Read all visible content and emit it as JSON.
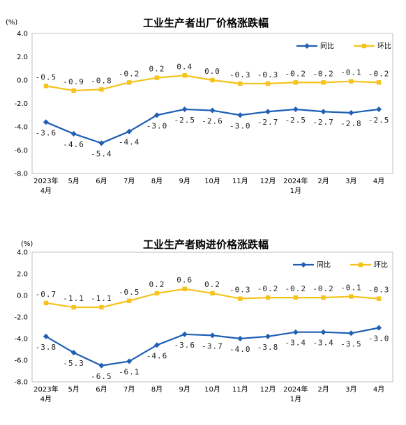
{
  "chart_data": [
    {
      "type": "line",
      "title": "工业生产者出厂价格涨跌幅",
      "unit": "(%)",
      "ylim": [
        -8.0,
        4.0
      ],
      "yticks": [
        "4.0",
        "2.0",
        "0.0",
        "-2.0",
        "-4.0",
        "-6.0",
        "-8.0"
      ],
      "categories": [
        {
          "line1": "2023年",
          "line2": "4月"
        },
        {
          "line1": "5月",
          "line2": ""
        },
        {
          "line1": "6月",
          "line2": ""
        },
        {
          "line1": "7月",
          "line2": ""
        },
        {
          "line1": "8月",
          "line2": ""
        },
        {
          "line1": "9月",
          "line2": ""
        },
        {
          "line1": "10月",
          "line2": ""
        },
        {
          "line1": "11月",
          "line2": ""
        },
        {
          "line1": "12月",
          "line2": ""
        },
        {
          "line1": "2024年",
          "line2": "1月"
        },
        {
          "line1": "2月",
          "line2": ""
        },
        {
          "line1": "3月",
          "line2": ""
        },
        {
          "line1": "4月",
          "line2": ""
        }
      ],
      "legend_position": "top-right",
      "grid": false,
      "series": [
        {
          "name": "同比",
          "color": "#1f5fb4",
          "marker": "diamond",
          "values": [
            -3.6,
            -4.6,
            -5.4,
            -4.4,
            -3.0,
            -2.5,
            -2.6,
            -3.0,
            -2.7,
            -2.5,
            -2.7,
            -2.8,
            -2.5
          ],
          "labels": [
            "-3.6",
            "-4.6",
            "-5.4",
            "-4.4",
            "-3.0",
            "-2.5",
            "-2.6",
            "-3.0",
            "-2.7",
            "-2.5",
            "-2.7",
            "-2.8",
            "-2.5"
          ]
        },
        {
          "name": "环比",
          "color": "#f5c31c",
          "marker": "square",
          "values": [
            -0.5,
            -0.9,
            -0.8,
            -0.2,
            0.2,
            0.4,
            0.0,
            -0.3,
            -0.3,
            -0.2,
            -0.2,
            -0.1,
            -0.2
          ],
          "labels": [
            "-0.5",
            "-0.9",
            "-0.8",
            "-0.2",
            "0.2",
            "0.4",
            "0.0",
            "-0.3",
            "-0.3",
            "-0.2",
            "-0.2",
            "-0.1",
            "-0.2"
          ]
        }
      ]
    },
    {
      "type": "line",
      "title": "工业生产者购进价格涨跌幅",
      "unit": "(%)",
      "ylim": [
        -8.0,
        4.0
      ],
      "yticks": [
        "4.0",
        "2.0",
        "0.0",
        "-2.0",
        "-4.0",
        "-6.0",
        "-8.0"
      ],
      "categories": [
        {
          "line1": "2023年",
          "line2": "4月"
        },
        {
          "line1": "5月",
          "line2": ""
        },
        {
          "line1": "6月",
          "line2": ""
        },
        {
          "line1": "7月",
          "line2": ""
        },
        {
          "line1": "8月",
          "line2": ""
        },
        {
          "line1": "9月",
          "line2": ""
        },
        {
          "line1": "10月",
          "line2": ""
        },
        {
          "line1": "11月",
          "line2": ""
        },
        {
          "line1": "12月",
          "line2": ""
        },
        {
          "line1": "2024年",
          "line2": "1月"
        },
        {
          "line1": "2月",
          "line2": ""
        },
        {
          "line1": "3月",
          "line2": ""
        },
        {
          "line1": "4月",
          "line2": ""
        }
      ],
      "legend_position": "top-right",
      "grid": false,
      "series": [
        {
          "name": "同比",
          "color": "#1f5fb4",
          "marker": "diamond",
          "values": [
            -3.8,
            -5.3,
            -6.5,
            -6.1,
            -4.6,
            -3.6,
            -3.7,
            -4.0,
            -3.8,
            -3.4,
            -3.4,
            -3.5,
            -3.0
          ],
          "labels": [
            "-3.8",
            "-5.3",
            "-6.5",
            "-6.1",
            "-4.6",
            "-3.6",
            "-3.7",
            "-4.0",
            "-3.8",
            "-3.4",
            "-3.4",
            "-3.5",
            "-3.0"
          ]
        },
        {
          "name": "环比",
          "color": "#f5c31c",
          "marker": "square",
          "values": [
            -0.7,
            -1.1,
            -1.1,
            -0.5,
            0.2,
            0.6,
            0.2,
            -0.3,
            -0.2,
            -0.2,
            -0.2,
            -0.1,
            -0.3
          ],
          "labels": [
            "-0.7",
            "-1.1",
            "-1.1",
            "-0.5",
            "0.2",
            "0.6",
            "0.2",
            "-0.3",
            "-0.2",
            "-0.2",
            "-0.2",
            "-0.1",
            "-0.3"
          ]
        }
      ]
    }
  ]
}
